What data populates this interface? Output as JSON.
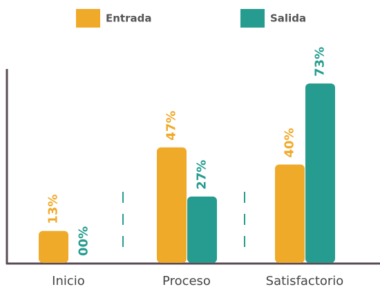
{
  "chart_data": {
    "type": "bar",
    "categories": [
      "Inicio",
      "Proceso",
      "Satisfactorio"
    ],
    "series": [
      {
        "name": "Entrada",
        "color": "#f0aa2a",
        "values": [
          13,
          47,
          40
        ],
        "value_labels": [
          "13%",
          "47%",
          "40%"
        ]
      },
      {
        "name": "Salida",
        "color": "#259c8f",
        "values": [
          0,
          27,
          73
        ],
        "value_labels": [
          "00%",
          "27%",
          "73%"
        ]
      }
    ],
    "ylim": [
      0,
      80
    ]
  }
}
